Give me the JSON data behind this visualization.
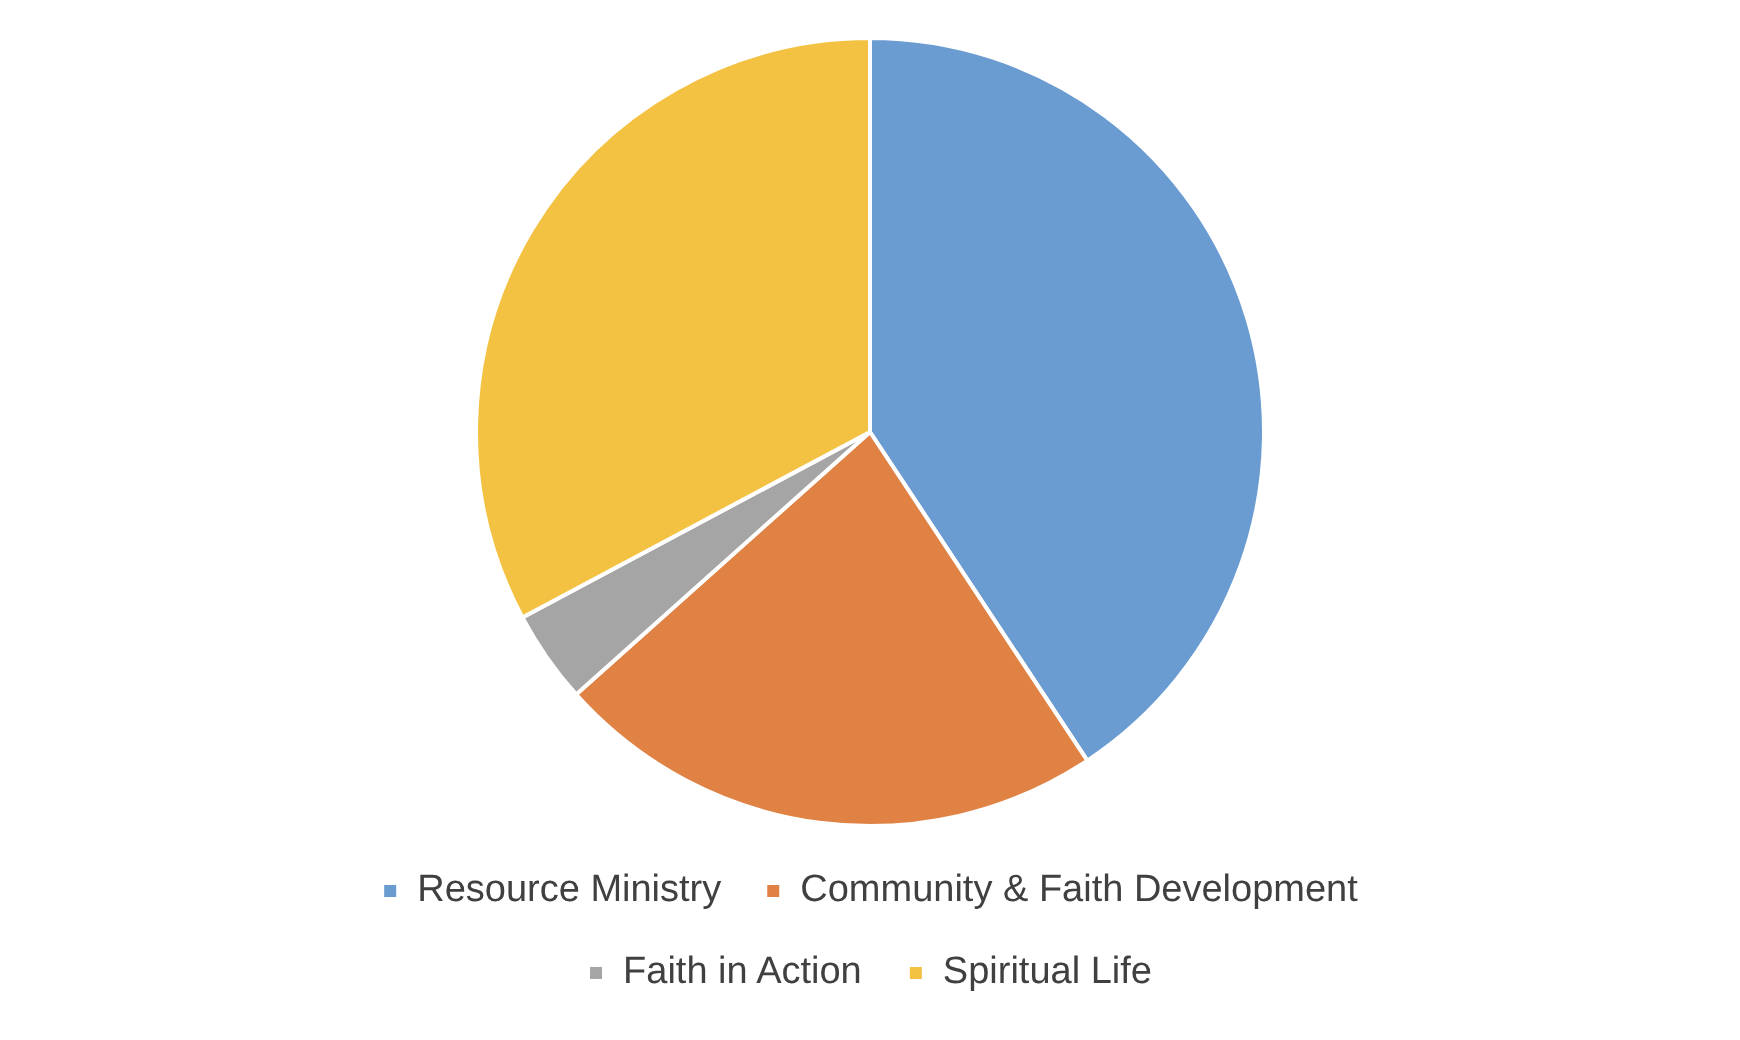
{
  "chart_data": {
    "type": "pie",
    "categories": [
      "Resource Ministry",
      "Community & Faith Development",
      "Faith in Action",
      "Spiritual Life"
    ],
    "values": [
      40.7,
      22.7,
      3.8,
      32.8
    ],
    "colors": [
      "#6a9bd1",
      "#df8244",
      "#a5a5a5",
      "#f4c243"
    ],
    "legend": "bottom"
  }
}
